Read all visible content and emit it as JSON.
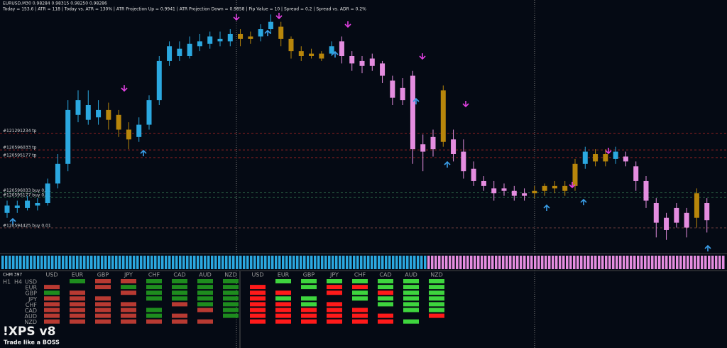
{
  "header": {
    "symbol_line": "EURUSD,M30  0.98284 0.98315 0.98250 0.98286",
    "stats_line": "Today = 153.6  |  ATR = 118  |  Today vs. ATR = 130%  |  ATR Projection Up = 0.9941  |  ATR Projection Down = 0.9858  |  Pip Value = 10  |  Spread = 0.2  |  Spread vs. ADR = 0.2%"
  },
  "chart_data": {
    "type": "candlestick",
    "ylim": [
      0,
      100
    ],
    "candles": [
      {
        "o": 16,
        "h": 21,
        "l": 14,
        "c": 19,
        "color": "#2ba8e0"
      },
      {
        "o": 19,
        "h": 21,
        "l": 16,
        "c": 18,
        "color": "#2ba8e0"
      },
      {
        "o": 18,
        "h": 23,
        "l": 17,
        "c": 21,
        "color": "#2ba8e0"
      },
      {
        "o": 20,
        "h": 22,
        "l": 17,
        "c": 19,
        "color": "#2ba8e0"
      },
      {
        "o": 20,
        "h": 30,
        "l": 19,
        "c": 28,
        "color": "#2ba8e0"
      },
      {
        "o": 28,
        "h": 40,
        "l": 26,
        "c": 36,
        "color": "#2ba8e0"
      },
      {
        "o": 36,
        "h": 62,
        "l": 33,
        "c": 58,
        "color": "#2ba8e0"
      },
      {
        "o": 56,
        "h": 66,
        "l": 53,
        "c": 62,
        "color": "#2ba8e0"
      },
      {
        "o": 60,
        "h": 66,
        "l": 52,
        "c": 54,
        "color": "#2ba8e0"
      },
      {
        "o": 55,
        "h": 62,
        "l": 52,
        "c": 58,
        "color": "#2ba8e0"
      },
      {
        "o": 58,
        "h": 61,
        "l": 50,
        "c": 54,
        "color": "#b8860b"
      },
      {
        "o": 56,
        "h": 58,
        "l": 47,
        "c": 50,
        "color": "#b8860b"
      },
      {
        "o": 50,
        "h": 53,
        "l": 42,
        "c": 46,
        "color": "#b8860b"
      },
      {
        "o": 47,
        "h": 55,
        "l": 45,
        "c": 52,
        "color": "#2ba8e0"
      },
      {
        "o": 52,
        "h": 64,
        "l": 50,
        "c": 62,
        "color": "#2ba8e0"
      },
      {
        "o": 62,
        "h": 80,
        "l": 60,
        "c": 78,
        "color": "#2ba8e0"
      },
      {
        "o": 78,
        "h": 86,
        "l": 76,
        "c": 84,
        "color": "#2ba8e0"
      },
      {
        "o": 83,
        "h": 86,
        "l": 78,
        "c": 80,
        "color": "#2ba8e0"
      },
      {
        "o": 80,
        "h": 88,
        "l": 79,
        "c": 85,
        "color": "#2ba8e0"
      },
      {
        "o": 84,
        "h": 89,
        "l": 82,
        "c": 86,
        "color": "#2ba8e0"
      },
      {
        "o": 85,
        "h": 90,
        "l": 83,
        "c": 88,
        "color": "#2ba8e0"
      },
      {
        "o": 87,
        "h": 90,
        "l": 84,
        "c": 86,
        "color": "#2ba8e0"
      },
      {
        "o": 86,
        "h": 91,
        "l": 84,
        "c": 89,
        "color": "#2ba8e0"
      },
      {
        "o": 89,
        "h": 91,
        "l": 84,
        "c": 87,
        "color": "#b8860b"
      },
      {
        "o": 87,
        "h": 90,
        "l": 85,
        "c": 88,
        "color": "#b8860b"
      },
      {
        "o": 88,
        "h": 93,
        "l": 86,
        "c": 91,
        "color": "#2ba8e0"
      },
      {
        "o": 91,
        "h": 97,
        "l": 89,
        "c": 94,
        "color": "#2ba8e0"
      },
      {
        "o": 92,
        "h": 94,
        "l": 84,
        "c": 87,
        "color": "#b8860b"
      },
      {
        "o": 87,
        "h": 88,
        "l": 79,
        "c": 82,
        "color": "#b8860b"
      },
      {
        "o": 82,
        "h": 84,
        "l": 78,
        "c": 80,
        "color": "#b8860b"
      },
      {
        "o": 80,
        "h": 83,
        "l": 79,
        "c": 81,
        "color": "#b8860b"
      },
      {
        "o": 81,
        "h": 82,
        "l": 78,
        "c": 79,
        "color": "#b8860b"
      },
      {
        "o": 81,
        "h": 86,
        "l": 80,
        "c": 84,
        "color": "#2ba8e0"
      },
      {
        "o": 86,
        "h": 88,
        "l": 77,
        "c": 80,
        "color": "#e58de0"
      },
      {
        "o": 80,
        "h": 82,
        "l": 74,
        "c": 77,
        "color": "#e58de0"
      },
      {
        "o": 78,
        "h": 80,
        "l": 73,
        "c": 76,
        "color": "#e58de0"
      },
      {
        "o": 76,
        "h": 81,
        "l": 74,
        "c": 79,
        "color": "#e58de0"
      },
      {
        "o": 77,
        "h": 78,
        "l": 69,
        "c": 72,
        "color": "#e58de0"
      },
      {
        "o": 70,
        "h": 72,
        "l": 60,
        "c": 63,
        "color": "#e58de0"
      },
      {
        "o": 62,
        "h": 71,
        "l": 60,
        "c": 67,
        "color": "#e58de0"
      },
      {
        "o": 72,
        "h": 74,
        "l": 36,
        "c": 42,
        "color": "#e58de0"
      },
      {
        "o": 44,
        "h": 48,
        "l": 33,
        "c": 41,
        "color": "#e58de0"
      },
      {
        "o": 42,
        "h": 50,
        "l": 39,
        "c": 47,
        "color": "#e58de0"
      },
      {
        "o": 45,
        "h": 68,
        "l": 43,
        "c": 66,
        "color": "#b8860b"
      },
      {
        "o": 46,
        "h": 50,
        "l": 37,
        "c": 40,
        "color": "#e58de0"
      },
      {
        "o": 41,
        "h": 46,
        "l": 30,
        "c": 33,
        "color": "#e58de0"
      },
      {
        "o": 34,
        "h": 37,
        "l": 27,
        "c": 29,
        "color": "#e58de0"
      },
      {
        "o": 29,
        "h": 31,
        "l": 25,
        "c": 27,
        "color": "#e58de0"
      },
      {
        "o": 26,
        "h": 29,
        "l": 21,
        "c": 24,
        "color": "#e58de0"
      },
      {
        "o": 25,
        "h": 28,
        "l": 23,
        "c": 26,
        "color": "#e58de0"
      },
      {
        "o": 25,
        "h": 27,
        "l": 21,
        "c": 23,
        "color": "#e58de0"
      },
      {
        "o": 24,
        "h": 26,
        "l": 21,
        "c": 23,
        "color": "#e58de0"
      },
      {
        "o": 24,
        "h": 27,
        "l": 22,
        "c": 25,
        "color": "#b8860b"
      },
      {
        "o": 25,
        "h": 28,
        "l": 23,
        "c": 27,
        "color": "#b8860b"
      },
      {
        "o": 26,
        "h": 29,
        "l": 24,
        "c": 27,
        "color": "#b8860b"
      },
      {
        "o": 27,
        "h": 29,
        "l": 23,
        "c": 25,
        "color": "#b8860b"
      },
      {
        "o": 27,
        "h": 38,
        "l": 25,
        "c": 36,
        "color": "#b8860b"
      },
      {
        "o": 36,
        "h": 43,
        "l": 34,
        "c": 41,
        "color": "#2ba8e0"
      },
      {
        "o": 40,
        "h": 42,
        "l": 35,
        "c": 37,
        "color": "#b8860b"
      },
      {
        "o": 37,
        "h": 42,
        "l": 35,
        "c": 40,
        "color": "#b8860b"
      },
      {
        "o": 38,
        "h": 43,
        "l": 36,
        "c": 41,
        "color": "#2ba8e0"
      },
      {
        "o": 39,
        "h": 41,
        "l": 35,
        "c": 37,
        "color": "#e58de0"
      },
      {
        "o": 35,
        "h": 37,
        "l": 25,
        "c": 29,
        "color": "#e58de0"
      },
      {
        "o": 29,
        "h": 31,
        "l": 18,
        "c": 21,
        "color": "#e58de0"
      },
      {
        "o": 20,
        "h": 22,
        "l": 6,
        "c": 12,
        "color": "#e58de0"
      },
      {
        "o": 14,
        "h": 16,
        "l": 5,
        "c": 9,
        "color": "#e58de0"
      },
      {
        "o": 12,
        "h": 20,
        "l": 10,
        "c": 18,
        "color": "#e58de0"
      },
      {
        "o": 16,
        "h": 18,
        "l": 6,
        "c": 10,
        "color": "#e58de0"
      },
      {
        "o": 14,
        "h": 26,
        "l": 10,
        "c": 24,
        "color": "#b8860b"
      },
      {
        "o": 20,
        "h": 22,
        "l": 8,
        "c": 13,
        "color": "#e58de0"
      }
    ],
    "order_lines": [
      {
        "label": "#121291234 tp",
        "level": 48.5,
        "color": "#8b2020"
      },
      {
        "label": "#120596033 tp",
        "level": 41.7,
        "color": "#8b2020"
      },
      {
        "label": "#120595177 tp",
        "level": 38.6,
        "color": "#8b2020"
      },
      {
        "label": "#120596033 buy 0.01",
        "level": 24.2,
        "color": "#2e6b4a"
      },
      {
        "label": "#120595177 buy 0.01",
        "level": 22.3,
        "color": "#2e6b4a"
      },
      {
        "label": "#120594425 buy 0.01",
        "level": 9.9,
        "color": "#6b3a3a"
      }
    ]
  },
  "strength_panel": {
    "name": "CHM 397",
    "h1": "H1",
    "h4": "H4",
    "currencies": [
      "USD",
      "EUR",
      "GBP",
      "JPY",
      "CHF",
      "CAD",
      "AUD",
      "NZD"
    ],
    "h1_grid": [
      [
        "",
        "#b83a32",
        "#1e8c1e",
        "#b83a32",
        "#b83a32",
        "#b83a32",
        "#b83a32",
        "#b83a32"
      ],
      [
        "#1e8c1e",
        "",
        "#b83a32",
        "#b83a32",
        "#b83a32",
        "#b83a32",
        "#b83a32",
        "#b83a32"
      ],
      [
        "#b83a32",
        "#b83a32",
        "",
        "#b83a32",
        "#b83a32",
        "#b83a32",
        "#b83a32",
        "#b83a32"
      ],
      [
        "#b83a32",
        "#1e8c1e",
        "#b83a32",
        "",
        "#b83a32",
        "#b83a32",
        "#b83a32",
        "#b83a32"
      ],
      [
        "#1e8c1e",
        "#1e8c1e",
        "#1e8c1e",
        "#1e8c1e",
        "",
        "#1e8c1e",
        "#1e8c1e",
        "#b83a32"
      ],
      [
        "#1e8c1e",
        "#1e8c1e",
        "#1e8c1e",
        "#1e8c1e",
        "#b83a32",
        "",
        "#b83a32",
        "#b83a32"
      ],
      [
        "#1e8c1e",
        "#1e8c1e",
        "#1e8c1e",
        "#1e8c1e",
        "#1e8c1e",
        "#b83a32",
        "",
        "#b83a32"
      ],
      [
        "#1e8c1e",
        "#1e8c1e",
        "#1e8c1e",
        "#1e8c1e",
        "#1e8c1e",
        "#1e8c1e",
        "#1e8c1e",
        ""
      ]
    ],
    "h4_grid": [
      [
        "",
        "#ff1a1a",
        "#ff1a1a",
        "#ff1a1a",
        "#ff1a1a",
        "#ff1a1a",
        "#ff1a1a",
        "#ff1a1a"
      ],
      [
        "#3ed43e",
        "",
        "#ff1a1a",
        "#3ed43e",
        "#ff1a1a",
        "#ff1a1a",
        "#ff1a1a",
        "#ff1a1a"
      ],
      [
        "#3ed43e",
        "#3ed43e",
        "",
        "#3ed43e",
        "#3ed43e",
        "#ff1a1a",
        "#ff1a1a",
        "#ff1a1a"
      ],
      [
        "#3ed43e",
        "#ff1a1a",
        "#ff1a1a",
        "",
        "#ff1a1a",
        "#ff1a1a",
        "#ff1a1a",
        "#ff1a1a"
      ],
      [
        "#3ed43e",
        "#ff1a1a",
        "#3ed43e",
        "#3ed43e",
        "",
        "#ff1a1a",
        "#ff1a1a",
        "#ff1a1a"
      ],
      [
        "#3ed43e",
        "#3ed43e",
        "#ff1a1a",
        "#3ed43e",
        "#3ed43e",
        "",
        "#ff1a1a",
        "#ff1a1a"
      ],
      [
        "#3ed43e",
        "#3ed43e",
        "#3ed43e",
        "#3ed43e",
        "#3ed43e",
        "#3ed43e",
        "",
        "#3ed43e"
      ],
      [
        "#3ed43e",
        "#3ed43e",
        "#3ed43e",
        "#3ed43e",
        "#3ed43e",
        "#3ed43e",
        "#ff1a1a",
        ""
      ]
    ]
  },
  "logo": {
    "title": "!XPS v8",
    "tagline": "Trade like a BOSS"
  }
}
